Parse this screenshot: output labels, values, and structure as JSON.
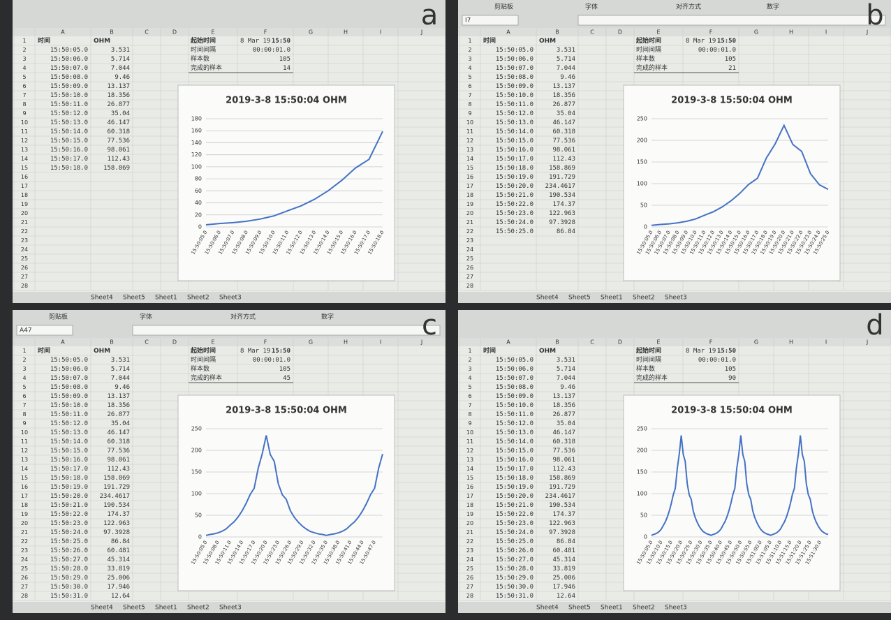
{
  "columns": [
    "A",
    "B",
    "C",
    "D",
    "E",
    "F",
    "G",
    "H",
    "I",
    "J"
  ],
  "row_numbers": [
    1,
    2,
    3,
    4,
    5,
    6,
    7,
    8,
    9,
    10,
    11,
    12,
    13,
    14,
    15,
    16,
    17,
    18,
    19,
    20,
    21,
    22,
    23,
    24,
    25,
    26,
    27,
    28
  ],
  "sheet_tabs": [
    "Sheet4",
    "Sheet5",
    "Sheet1",
    "Sheet2",
    "Sheet3"
  ],
  "info_labels": [
    "起始时间",
    "时间间隔",
    "样本数",
    "完成的样本"
  ],
  "panels": [
    {
      "letter": "a",
      "table": {
        "header": [
          "时间",
          "OHM"
        ],
        "rows": [
          [
            "15:50:05.0",
            "3.531"
          ],
          [
            "15:50:06.0",
            "5.714"
          ],
          [
            "15:50:07.0",
            "7.044"
          ],
          [
            "15:50:08.0",
            "9.46"
          ],
          [
            "15:50:09.0",
            "13.137"
          ],
          [
            "15:50:10.0",
            "18.356"
          ],
          [
            "15:50:11.0",
            "26.877"
          ],
          [
            "15:50:12.0",
            "35.04"
          ],
          [
            "15:50:13.0",
            "46.147"
          ],
          [
            "15:50:14.0",
            "60.318"
          ],
          [
            "15:50:15.0",
            "77.536"
          ],
          [
            "15:50:16.0",
            "98.061"
          ],
          [
            "15:50:17.0",
            "112.43"
          ],
          [
            "15:50:18.0",
            "158.869"
          ]
        ]
      },
      "info": {
        "start_date": "8 Mar 19",
        "start_time": "15:50",
        "interval": "00:00:01.0",
        "sample_count": "105",
        "completed": "14"
      },
      "chart": {
        "type": "line",
        "title": "2019-3-8 15:50:04 OHM",
        "categories": [
          "15:50:05.0",
          "15:50:06.0",
          "15:50:07.0",
          "15:50:08.0",
          "15:50:09.0",
          "15:50:10.0",
          "15:50:11.0",
          "15:50:12.0",
          "15:50:13.0",
          "15:50:14.0",
          "15:50:15.0",
          "15:50:16.0",
          "15:50:17.0",
          "15:50:18.0"
        ],
        "series": [
          {
            "color": "#4472c4",
            "values": [
              3.531,
              5.714,
              7.044,
              9.46,
              13.137,
              18.356,
              26.877,
              35.04,
              46.147,
              60.318,
              77.536,
              98.061,
              112.43,
              158.869
            ]
          }
        ],
        "ylim": [
          0,
          180
        ],
        "yticks": [
          0,
          20,
          40,
          60,
          80,
          100,
          120,
          140,
          160,
          180
        ],
        "grid": true
      }
    },
    {
      "letter": "b",
      "ribbon": [
        "剪贴板",
        "字体",
        "对齐方式",
        "数字"
      ],
      "cell_ref": "I7",
      "table": {
        "header": [
          "时间",
          "OHM"
        ],
        "rows": [
          [
            "15:50:05.0",
            "3.531"
          ],
          [
            "15:50:06.0",
            "5.714"
          ],
          [
            "15:50:07.0",
            "7.044"
          ],
          [
            "15:50:08.0",
            "9.46"
          ],
          [
            "15:50:09.0",
            "13.137"
          ],
          [
            "15:50:10.0",
            "18.356"
          ],
          [
            "15:50:11.0",
            "26.877"
          ],
          [
            "15:50:12.0",
            "35.04"
          ],
          [
            "15:50:13.0",
            "46.147"
          ],
          [
            "15:50:14.0",
            "60.318"
          ],
          [
            "15:50:15.0",
            "77.536"
          ],
          [
            "15:50:16.0",
            "98.061"
          ],
          [
            "15:50:17.0",
            "112.43"
          ],
          [
            "15:50:18.0",
            "158.869"
          ],
          [
            "15:50:19.0",
            "191.729"
          ],
          [
            "15:50:20.0",
            "234.4617"
          ],
          [
            "15:50:21.0",
            "190.534"
          ],
          [
            "15:50:22.0",
            "174.37"
          ],
          [
            "15:50:23.0",
            "122.963"
          ],
          [
            "15:50:24.0",
            "97.3928"
          ],
          [
            "15:50:25.0",
            "86.84"
          ]
        ]
      },
      "info": {
        "start_date": "8 Mar 19",
        "start_time": "15:50",
        "interval": "00:00:01.0",
        "sample_count": "105",
        "completed": "21"
      },
      "chart": {
        "type": "line",
        "title": "2019-3-8 15:50:04 OHM",
        "categories": [
          "15:50:05.0",
          "15:50:06.0",
          "15:50:07.0",
          "15:50:08.0",
          "15:50:09.0",
          "15:50:10.0",
          "15:50:11.0",
          "15:50:12.0",
          "15:50:13.0",
          "15:50:14.0",
          "15:50:15.0",
          "15:50:16.0",
          "15:50:17.0",
          "15:50:18.0",
          "15:50:19.0",
          "15:50:20.0",
          "15:50:21.0",
          "15:50:22.0",
          "15:50:23.0",
          "15:50:24.0",
          "15:50:25.0"
        ],
        "series": [
          {
            "color": "#4472c4",
            "values": [
              3.531,
              5.714,
              7.044,
              9.46,
              13.137,
              18.356,
              26.877,
              35.04,
              46.147,
              60.318,
              77.536,
              98.061,
              112.43,
              158.869,
              191.729,
              234.4617,
              190.534,
              174.37,
              122.963,
              97.3928,
              86.84
            ]
          }
        ],
        "ylim": [
          0,
          250
        ],
        "yticks": [
          0,
          50,
          100,
          150,
          200,
          250
        ],
        "grid": true
      }
    },
    {
      "letter": "c",
      "ribbon": [
        "剪贴板",
        "字体",
        "对齐方式",
        "数字"
      ],
      "cell_ref": "A47",
      "table": {
        "header": [
          "时间",
          "OHM"
        ],
        "rows": [
          [
            "15:50:05.0",
            "3.531"
          ],
          [
            "15:50:06.0",
            "5.714"
          ],
          [
            "15:50:07.0",
            "7.044"
          ],
          [
            "15:50:08.0",
            "9.46"
          ],
          [
            "15:50:09.0",
            "13.137"
          ],
          [
            "15:50:10.0",
            "18.356"
          ],
          [
            "15:50:11.0",
            "26.877"
          ],
          [
            "15:50:12.0",
            "35.04"
          ],
          [
            "15:50:13.0",
            "46.147"
          ],
          [
            "15:50:14.0",
            "60.318"
          ],
          [
            "15:50:15.0",
            "77.536"
          ],
          [
            "15:50:16.0",
            "98.061"
          ],
          [
            "15:50:17.0",
            "112.43"
          ],
          [
            "15:50:18.0",
            "158.869"
          ],
          [
            "15:50:19.0",
            "191.729"
          ],
          [
            "15:50:20.0",
            "234.4617"
          ],
          [
            "15:50:21.0",
            "190.534"
          ],
          [
            "15:50:22.0",
            "174.37"
          ],
          [
            "15:50:23.0",
            "122.963"
          ],
          [
            "15:50:24.0",
            "97.3928"
          ],
          [
            "15:50:25.0",
            "86.84"
          ],
          [
            "15:50:26.0",
            "60.481"
          ],
          [
            "15:50:27.0",
            "45.314"
          ],
          [
            "15:50:28.0",
            "33.819"
          ],
          [
            "15:50:29.0",
            "25.006"
          ],
          [
            "15:50:30.0",
            "17.946"
          ],
          [
            "15:50:31.0",
            "12.64"
          ]
        ]
      },
      "info": {
        "start_date": "8 Mar 19",
        "start_time": "15:50",
        "interval": "00:00:01.0",
        "sample_count": "105",
        "completed": "45"
      },
      "chart": {
        "type": "line",
        "title": "2019-3-8 15:50:04 OHM",
        "categories": [
          "15:50:05.0",
          null,
          null,
          "15:50:08.0",
          null,
          null,
          "15:50:11.0",
          null,
          null,
          "15:50:14.0",
          null,
          null,
          "15:50:17.0",
          null,
          null,
          "15:50:20.0",
          null,
          null,
          "15:50:23.0",
          null,
          null,
          "15:50:26.0",
          null,
          null,
          "15:50:29.0",
          null,
          null,
          "15:50:32.0",
          null,
          null,
          "15:50:35.0",
          null,
          null,
          "15:50:38.0",
          null,
          null,
          "15:50:41.0",
          null,
          null,
          "15:50:44.0",
          null,
          null,
          "15:50:47.0",
          null,
          null
        ],
        "series": [
          {
            "color": "#4472c4",
            "values": [
              3.531,
              5.714,
              7.044,
              9.46,
              13.137,
              18.356,
              26.877,
              35.04,
              46.147,
              60.318,
              77.536,
              98.061,
              112.43,
              158.869,
              191.729,
              234.4617,
              190.534,
              174.37,
              122.963,
              97.3928,
              86.84,
              60.481,
              45.314,
              33.819,
              25.006,
              17.946,
              12.64,
              9.5,
              7,
              5.7,
              3.531,
              5.714,
              7.044,
              9.46,
              13.137,
              18.356,
              26.877,
              35.04,
              46.147,
              60.318,
              77.536,
              98.061,
              112.43,
              158.869,
              191.729
            ]
          }
        ],
        "ylim": [
          0,
          250
        ],
        "yticks": [
          0,
          50,
          100,
          150,
          200,
          250
        ],
        "grid": true
      }
    },
    {
      "letter": "d",
      "table": {
        "header": [
          "时间",
          "OHM"
        ],
        "rows": [
          [
            "15:50:05.0",
            "3.531"
          ],
          [
            "15:50:06.0",
            "5.714"
          ],
          [
            "15:50:07.0",
            "7.044"
          ],
          [
            "15:50:08.0",
            "9.46"
          ],
          [
            "15:50:09.0",
            "13.137"
          ],
          [
            "15:50:10.0",
            "18.356"
          ],
          [
            "15:50:11.0",
            "26.877"
          ],
          [
            "15:50:12.0",
            "35.04"
          ],
          [
            "15:50:13.0",
            "46.147"
          ],
          [
            "15:50:14.0",
            "60.318"
          ],
          [
            "15:50:15.0",
            "77.536"
          ],
          [
            "15:50:16.0",
            "98.061"
          ],
          [
            "15:50:17.0",
            "112.43"
          ],
          [
            "15:50:18.0",
            "158.869"
          ],
          [
            "15:50:19.0",
            "191.729"
          ],
          [
            "15:50:20.0",
            "234.4617"
          ],
          [
            "15:50:21.0",
            "190.534"
          ],
          [
            "15:50:22.0",
            "174.37"
          ],
          [
            "15:50:23.0",
            "122.963"
          ],
          [
            "15:50:24.0",
            "97.3928"
          ],
          [
            "15:50:25.0",
            "86.84"
          ],
          [
            "15:50:26.0",
            "60.481"
          ],
          [
            "15:50:27.0",
            "45.314"
          ],
          [
            "15:50:28.0",
            "33.819"
          ],
          [
            "15:50:29.0",
            "25.006"
          ],
          [
            "15:50:30.0",
            "17.946"
          ],
          [
            "15:50:31.0",
            "12.64"
          ]
        ]
      },
      "info": {
        "start_date": "8 Mar 19",
        "start_time": "15:50",
        "interval": "00:00:01.0",
        "sample_count": "105",
        "completed": "90"
      },
      "chart": {
        "type": "line",
        "title": "2019-3-8 15:50:04 OHM",
        "categories": [
          "15:50:05.0",
          null,
          null,
          null,
          null,
          "15:50:10.0",
          null,
          null,
          null,
          null,
          "15:50:15.0",
          null,
          null,
          null,
          null,
          "15:50:20.0",
          null,
          null,
          null,
          null,
          "15:50:25.0",
          null,
          null,
          null,
          null,
          "15:50:30.0",
          null,
          null,
          null,
          null,
          "15:50:35.0",
          null,
          null,
          null,
          null,
          "15:50:40.0",
          null,
          null,
          null,
          null,
          "15:50:45.0",
          null,
          null,
          null,
          null,
          "15:50:50.0",
          null,
          null,
          null,
          null,
          "15:50:55.0",
          null,
          null,
          null,
          null,
          "15:51:00.0",
          null,
          null,
          null,
          null,
          "15:51:05.0",
          null,
          null,
          null,
          null,
          "15:51:10.0",
          null,
          null,
          null,
          null,
          "15:51:15.0",
          null,
          null,
          null,
          null,
          "15:51:20.0",
          null,
          null,
          null,
          null,
          "15:51:25.0",
          null,
          null,
          null,
          null,
          "15:51:30.0",
          null,
          null,
          null,
          null
        ],
        "series": [
          {
            "color": "#4472c4",
            "values": [
              3.531,
              5.714,
              7.044,
              9.46,
              13.137,
              18.356,
              26.877,
              35.04,
              46.147,
              60.318,
              77.536,
              98.061,
              112.43,
              158.869,
              191.729,
              234.4617,
              190.534,
              174.37,
              122.963,
              97.3928,
              86.84,
              60.481,
              45.314,
              33.819,
              25.006,
              17.946,
              12.64,
              9.5,
              7,
              5.7,
              3.531,
              5.714,
              7.044,
              9.46,
              13.137,
              18.356,
              26.877,
              35.04,
              46.147,
              60.318,
              77.536,
              98.061,
              112.43,
              158.869,
              191.729,
              234.4617,
              190.534,
              174.37,
              122.963,
              97.3928,
              86.84,
              60.481,
              45.314,
              33.819,
              25.006,
              17.946,
              12.64,
              9.5,
              7,
              5.7,
              3.531,
              5.714,
              7.044,
              9.46,
              13.137,
              18.356,
              26.877,
              35.04,
              46.147,
              60.318,
              77.536,
              98.061,
              112.43,
              158.869,
              191.729,
              234.4617,
              190.534,
              174.37,
              122.963,
              97.3928,
              86.84,
              60.481,
              45.314,
              33.819,
              25.006,
              17.946,
              12.64,
              9.5,
              7,
              5.7
            ]
          }
        ],
        "ylim": [
          0,
          250
        ],
        "yticks": [
          0,
          50,
          100,
          150,
          200,
          250
        ],
        "grid": true
      }
    }
  ]
}
